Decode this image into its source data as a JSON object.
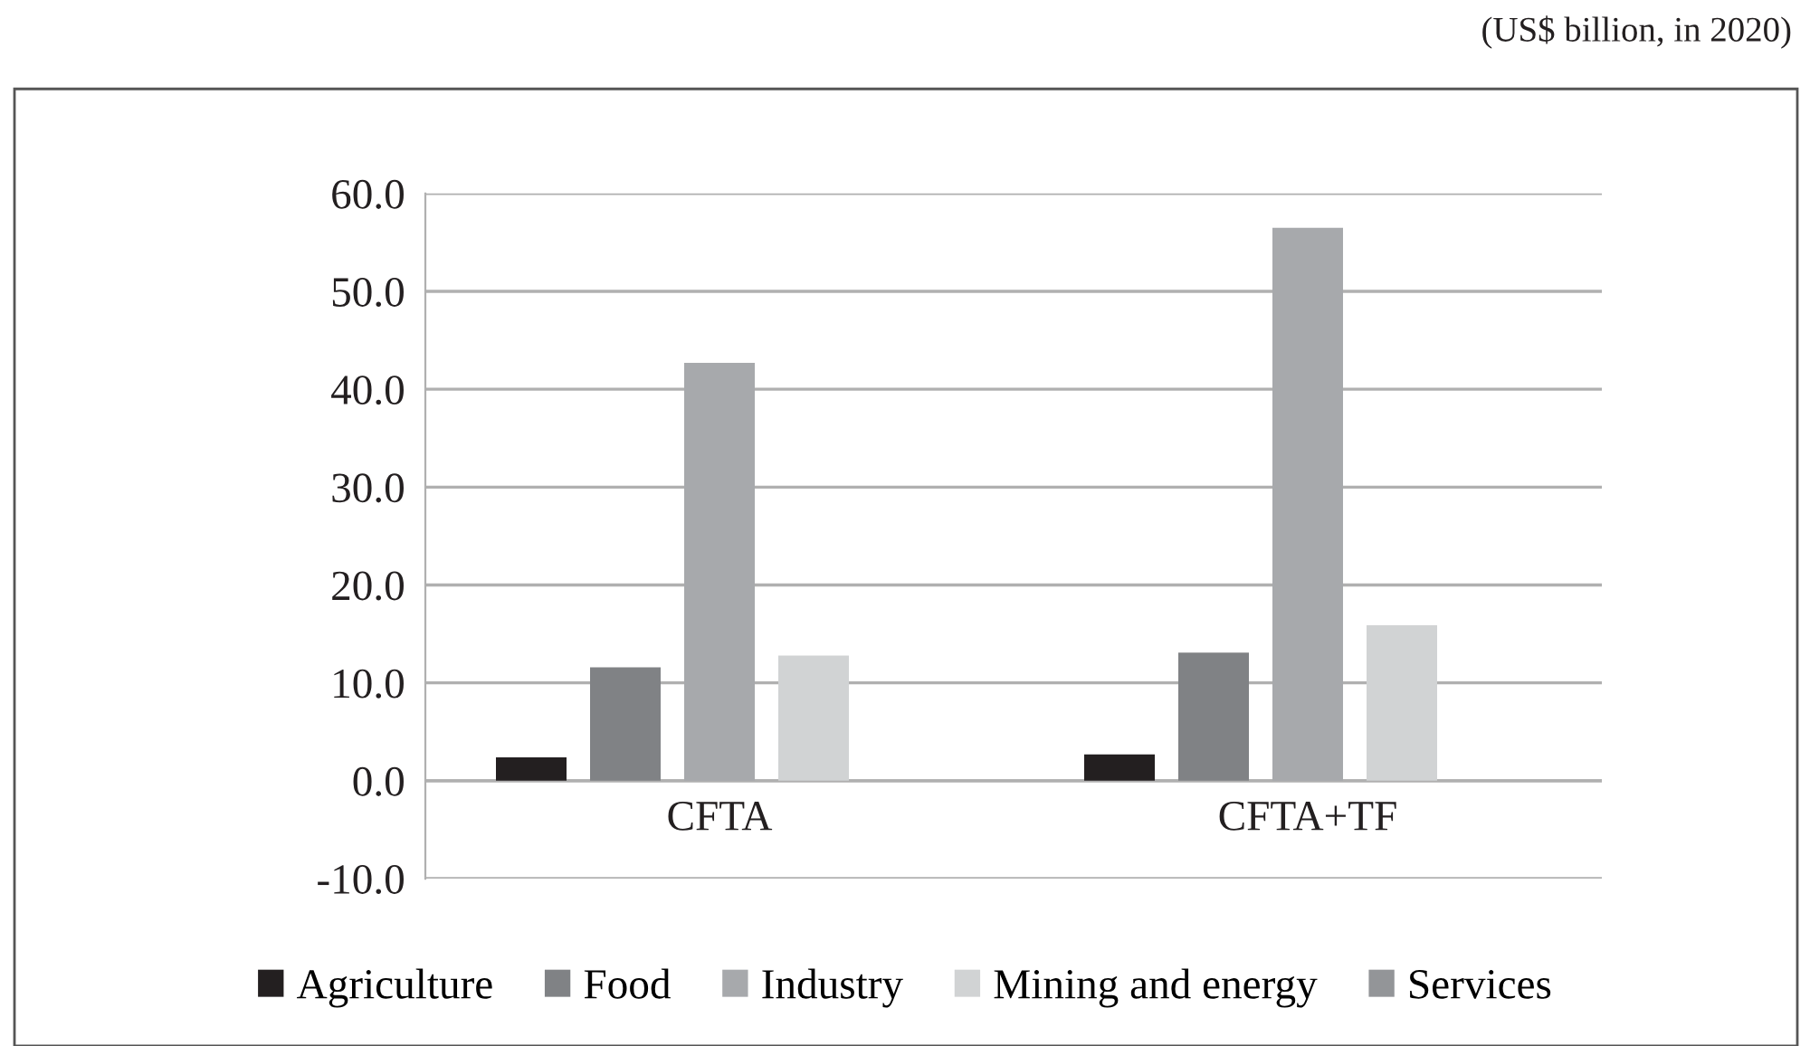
{
  "chart_data": {
    "type": "bar",
    "annotations": [
      "(US$ billion, in 2020)"
    ],
    "categories": [
      "CFTA",
      "CFTA+TF"
    ],
    "series": [
      {
        "name": "Agriculture",
        "color": "#231f20",
        "values": [
          2.4,
          2.7
        ]
      },
      {
        "name": "Food",
        "color": "#808285",
        "values": [
          11.6,
          13.1
        ]
      },
      {
        "name": "Industry",
        "color": "#a7a9ac",
        "values": [
          42.7,
          56.5
        ]
      },
      {
        "name": "Mining and energy",
        "color": "#d1d3d4",
        "values": [
          12.8,
          15.9
        ]
      },
      {
        "name": "Services",
        "color": "#939598",
        "values": [
          0,
          0
        ]
      }
    ],
    "ylim": [
      -10,
      60
    ],
    "yticks": [
      {
        "value": -10,
        "label": "-10.0"
      },
      {
        "value": 0,
        "label": "0.0"
      },
      {
        "value": 10,
        "label": "10.0"
      },
      {
        "value": 20,
        "label": "20.0"
      },
      {
        "value": 30,
        "label": "30.0"
      },
      {
        "value": 40,
        "label": "40.0"
      },
      {
        "value": 50,
        "label": "50.0"
      },
      {
        "value": 60,
        "label": "60.0"
      }
    ],
    "grid": "y",
    "legend": "bottom"
  }
}
